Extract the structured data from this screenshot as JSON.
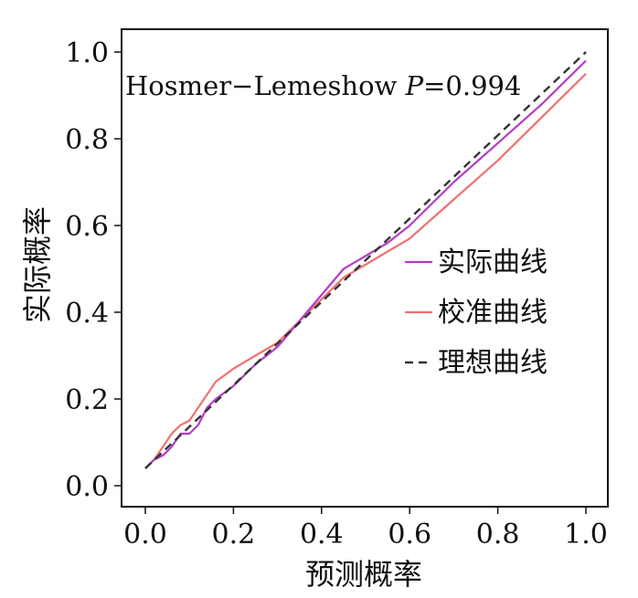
{
  "chart_data": {
    "type": "line",
    "title": "",
    "xlabel": "预测概率",
    "ylabel": "实际概率",
    "xlim": [
      0,
      1
    ],
    "ylim": [
      0,
      1
    ],
    "xticks": [
      "0.0",
      "0.2",
      "0.4",
      "0.6",
      "0.8",
      "1.0"
    ],
    "yticks": [
      "0.0",
      "0.2",
      "0.4",
      "0.6",
      "0.8",
      "1.0"
    ],
    "grid": false,
    "legend_position": "right",
    "annotation": {
      "prefix": "Hosmer−Lemeshow ",
      "italic": "P",
      "suffix": "=0.994"
    },
    "series": [
      {
        "name": "实际曲线",
        "color": "#b43cc8",
        "dash": "solid",
        "x": [
          0.0,
          0.02,
          0.04,
          0.06,
          0.08,
          0.1,
          0.12,
          0.14,
          0.16,
          0.2,
          0.25,
          0.3,
          0.35,
          0.4,
          0.45,
          0.5,
          0.55,
          0.6,
          0.7,
          0.8,
          0.9,
          1.0
        ],
        "y": [
          0.04,
          0.06,
          0.07,
          0.09,
          0.12,
          0.12,
          0.14,
          0.18,
          0.2,
          0.23,
          0.28,
          0.32,
          0.38,
          0.44,
          0.5,
          0.53,
          0.56,
          0.6,
          0.7,
          0.79,
          0.88,
          0.98
        ]
      },
      {
        "name": "校准曲线",
        "color": "#f07070",
        "dash": "solid",
        "x": [
          0.0,
          0.02,
          0.04,
          0.06,
          0.08,
          0.1,
          0.12,
          0.14,
          0.16,
          0.2,
          0.25,
          0.3,
          0.35,
          0.4,
          0.45,
          0.5,
          0.55,
          0.6,
          0.7,
          0.8,
          0.9,
          1.0
        ],
        "y": [
          0.04,
          0.06,
          0.09,
          0.12,
          0.14,
          0.15,
          0.18,
          0.21,
          0.24,
          0.27,
          0.3,
          0.33,
          0.38,
          0.43,
          0.48,
          0.51,
          0.54,
          0.57,
          0.66,
          0.75,
          0.85,
          0.95
        ]
      },
      {
        "name": "理想曲线",
        "color": "#333333",
        "dash": "dashed",
        "x": [
          0.0,
          1.0
        ],
        "y": [
          0.04,
          1.0
        ]
      }
    ]
  }
}
